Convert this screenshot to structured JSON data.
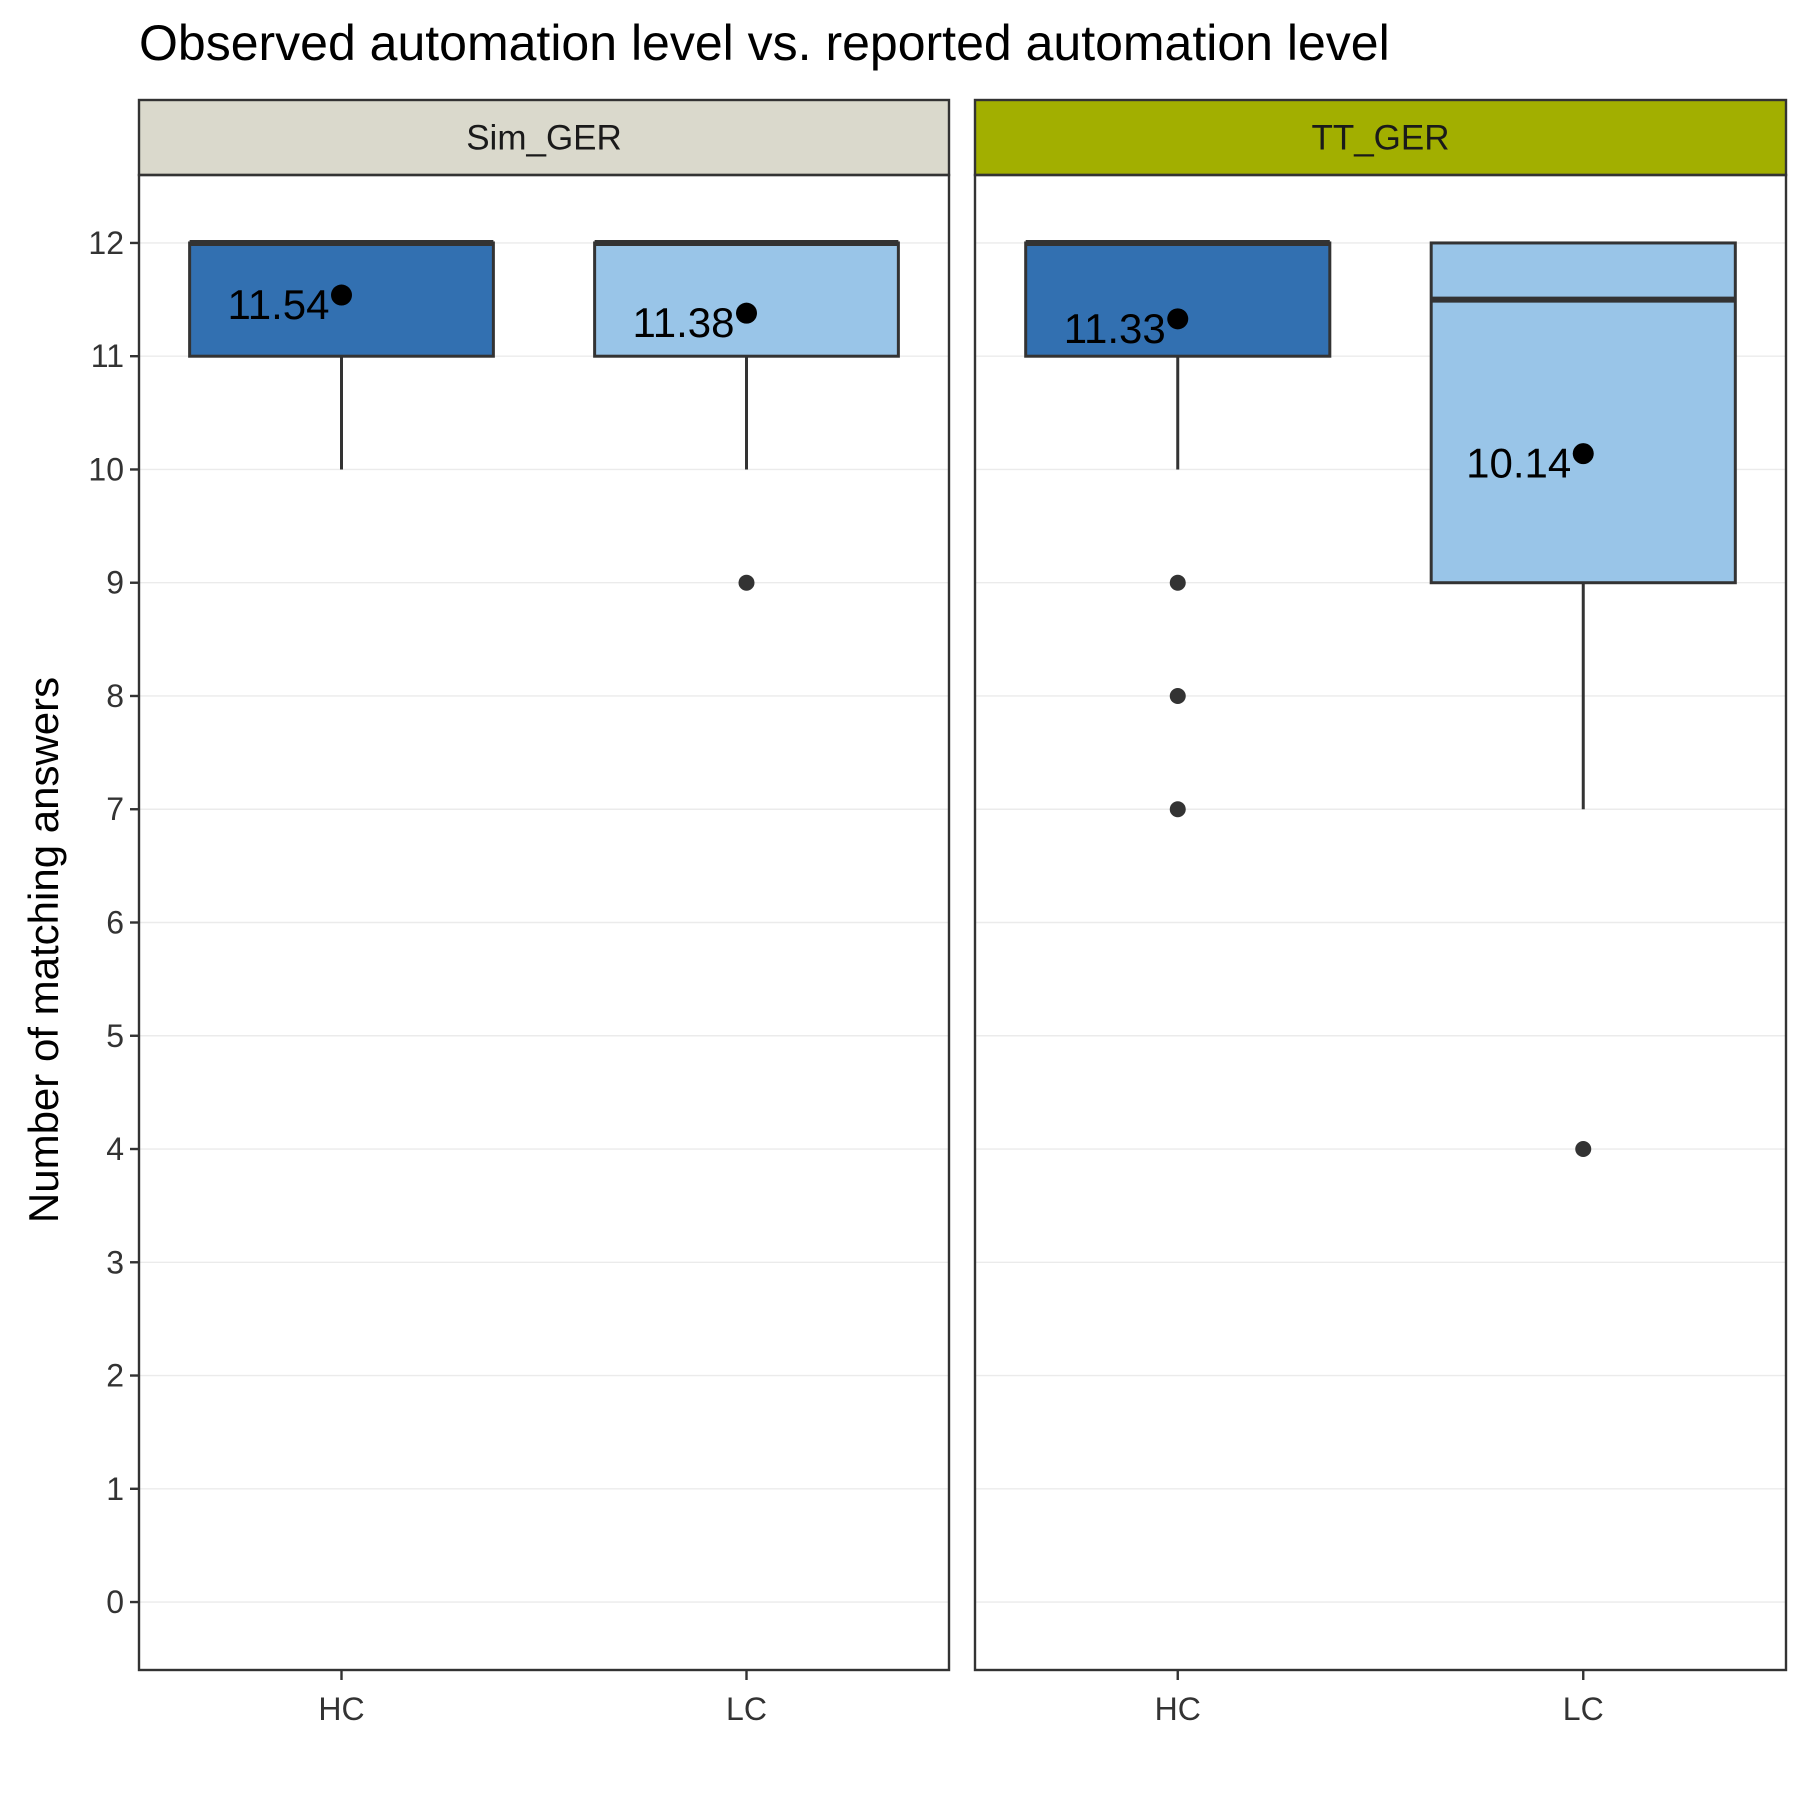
{
  "chart_data": {
    "type": "boxplot",
    "title": "Observed automation level vs. reported automation level",
    "ylabel": "Number of matching answers",
    "xlabel": "",
    "ylim": [
      -0.6,
      12.6
    ],
    "yticks": [
      0,
      1,
      2,
      3,
      4,
      5,
      6,
      7,
      8,
      9,
      10,
      11,
      12
    ],
    "categories": [
      "HC",
      "LC"
    ],
    "fill_colors": {
      "HC": "#3270B1",
      "LC": "#99C5E8"
    },
    "panels": [
      {
        "name": "Sim_GER",
        "strip_color": "#DAD9CC",
        "boxes": [
          {
            "category": "HC",
            "q1": 11,
            "median": 12,
            "q3": 12,
            "whisker_low": 10,
            "whisker_high": 12,
            "outliers": [],
            "mean": 11.54,
            "mean_label": "11.54"
          },
          {
            "category": "LC",
            "q1": 11,
            "median": 12,
            "q3": 12,
            "whisker_low": 10,
            "whisker_high": 12,
            "outliers": [
              9
            ],
            "mean": 11.38,
            "mean_label": "11.38"
          }
        ]
      },
      {
        "name": "TT_GER",
        "strip_color": "#A2AF00",
        "boxes": [
          {
            "category": "HC",
            "q1": 11,
            "median": 12,
            "q3": 12,
            "whisker_low": 10,
            "whisker_high": 12,
            "outliers": [
              9,
              8,
              7
            ],
            "mean": 11.33,
            "mean_label": "11.33"
          },
          {
            "category": "LC",
            "q1": 9,
            "median": 11.5,
            "q3": 12,
            "whisker_low": 7,
            "whisker_high": 12,
            "outliers": [
              4
            ],
            "mean": 10.14,
            "mean_label": "10.14"
          }
        ]
      }
    ],
    "grid": true,
    "legend": "none"
  }
}
